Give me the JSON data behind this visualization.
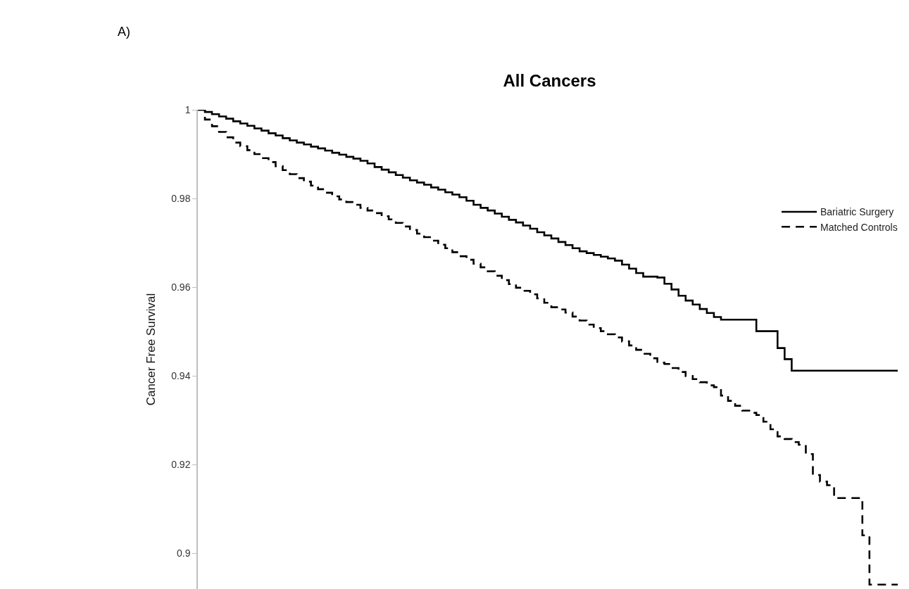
{
  "chart_data": {
    "type": "step",
    "title": "All Cancers",
    "ylabel": "Cancer Free Survival",
    "annotations": [
      "A)"
    ],
    "categories": [
      null,
      null,
      null,
      null,
      null,
      null,
      null,
      null,
      null,
      null,
      null,
      null,
      null,
      null,
      null,
      null,
      null,
      null,
      null,
      null,
      null,
      null,
      null,
      null,
      null,
      null,
      null,
      null,
      null,
      null,
      null,
      null,
      null,
      null,
      null,
      null,
      null,
      null,
      null,
      null,
      null,
      null,
      null,
      null,
      null,
      null,
      null,
      null,
      null,
      null,
      null,
      null,
      null,
      null,
      null,
      null,
      null,
      null,
      null,
      null,
      null,
      null,
      null,
      null,
      null,
      null,
      null,
      null,
      null,
      null,
      null,
      null,
      null,
      null,
      null,
      null,
      null,
      null,
      null,
      null,
      null,
      null,
      null,
      null,
      null,
      null,
      null,
      null,
      null,
      null,
      null,
      null,
      null,
      null,
      null,
      null,
      null,
      null,
      null,
      null
    ],
    "series": [
      {
        "name": "Bariatric Surgery",
        "color": "#000000",
        "line_style": "solid",
        "values": [
          1.0,
          0.9995,
          0.999,
          0.9985,
          0.998,
          0.9974,
          0.9969,
          0.9964,
          0.9958,
          0.9953,
          0.9947,
          0.9942,
          0.9936,
          0.9931,
          0.9926,
          0.9922,
          0.9917,
          0.9913,
          0.9908,
          0.9903,
          0.9899,
          0.9894,
          0.989,
          0.9885,
          0.9879,
          0.9871,
          0.9865,
          0.9859,
          0.9853,
          0.9847,
          0.9841,
          0.9836,
          0.9831,
          0.9825,
          0.982,
          0.9814,
          0.9809,
          0.9803,
          0.9795,
          0.9786,
          0.9779,
          0.9773,
          0.9766,
          0.9759,
          0.9752,
          0.9746,
          0.9739,
          0.9732,
          0.9724,
          0.9717,
          0.971,
          0.9702,
          0.9695,
          0.9688,
          0.9681,
          0.9677,
          0.9673,
          0.9669,
          0.9665,
          0.966,
          0.9651,
          0.9642,
          0.9632,
          0.9624,
          0.9624,
          0.9622,
          0.9608,
          0.9595,
          0.9581,
          0.957,
          0.9561,
          0.9551,
          0.9542,
          0.9533,
          0.9527,
          0.9527,
          0.9527,
          0.9527,
          0.9527,
          0.9501,
          0.9501,
          0.9501,
          0.9463,
          0.9438,
          0.9412,
          0.9412,
          0.9412,
          0.9412,
          0.9412,
          0.9412,
          0.9412,
          0.9412,
          0.9412,
          0.9412,
          0.9412,
          0.9412,
          0.9412,
          0.9412,
          0.9412,
          0.9412
        ]
      },
      {
        "name": "Matched Controls",
        "color": "#000000",
        "line_style": "dashed",
        "values": [
          1.0,
          0.9978,
          0.9963,
          0.995,
          0.9938,
          0.9926,
          0.9918,
          0.9909,
          0.99,
          0.9891,
          0.9882,
          0.9873,
          0.9864,
          0.9855,
          0.9846,
          0.9838,
          0.9829,
          0.9821,
          0.9813,
          0.9805,
          0.9798,
          0.9792,
          0.9786,
          0.9779,
          0.9773,
          0.9767,
          0.976,
          0.9753,
          0.9745,
          0.9737,
          0.9729,
          0.9721,
          0.9713,
          0.9705,
          0.9696,
          0.9688,
          0.9679,
          0.967,
          0.9662,
          0.9653,
          0.9645,
          0.9636,
          0.9626,
          0.9616,
          0.9607,
          0.9599,
          0.9592,
          0.9584,
          0.9575,
          0.9565,
          0.9555,
          0.955,
          0.9543,
          0.9534,
          0.9525,
          0.9516,
          0.9508,
          0.9501,
          0.9494,
          0.9487,
          0.9478,
          0.9469,
          0.9459,
          0.945,
          0.944,
          0.943,
          0.9427,
          0.9418,
          0.9409,
          0.94,
          0.9393,
          0.9386,
          0.9379,
          0.9375,
          0.9356,
          0.9344,
          0.9333,
          0.9322,
          0.9317,
          0.9312,
          0.9297,
          0.928,
          0.9264,
          0.9258,
          0.9251,
          0.9245,
          0.9224,
          0.9177,
          0.9162,
          0.9154,
          0.9125,
          0.9125,
          0.9125,
          0.9125,
          0.9041,
          0.893,
          0.893,
          0.893,
          0.893,
          0.893
        ]
      }
    ],
    "ylim": [
      0.892,
      1
    ],
    "yticks": [
      1,
      0.98,
      0.96,
      0.94,
      0.92,
      0.9
    ],
    "tick_labels": "y",
    "legend": "right"
  }
}
